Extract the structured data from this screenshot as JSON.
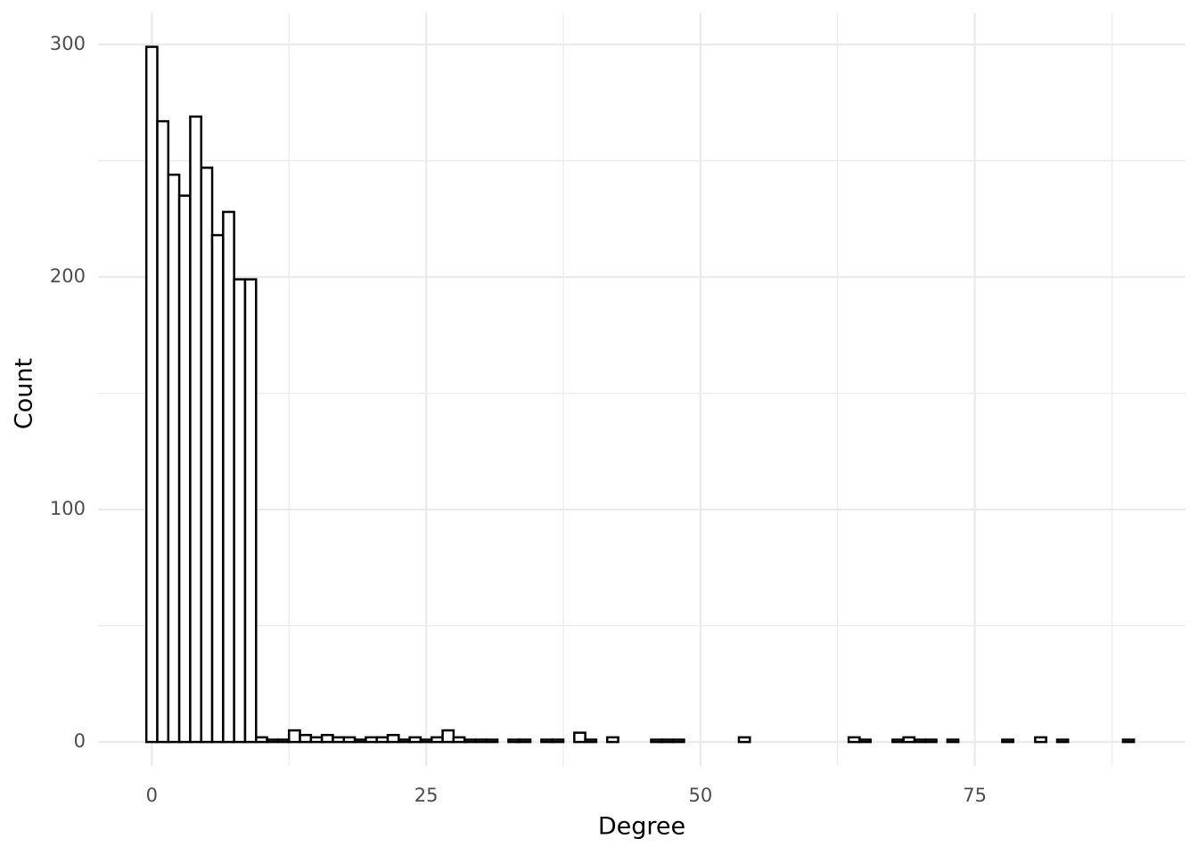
{
  "chart_data": {
    "type": "histogram",
    "x_label": "Degree",
    "y_label": "Count",
    "bins": [
      -0.5,
      0.5,
      1.5,
      2.5,
      3.5,
      4.5,
      5.5,
      6.5,
      7.5,
      8.5,
      9.5,
      10.5,
      11.5,
      12.5,
      13.5,
      14.5,
      15.5,
      16.5,
      17.5,
      18.5,
      19.5,
      20.5,
      21.5,
      22.5,
      23.5,
      24.5,
      25.5,
      26.5,
      27.5,
      28.5,
      29.5,
      30.5,
      31.5,
      32.5,
      33.5,
      34.5,
      35.5,
      36.5,
      37.5,
      38.5,
      39.5,
      40.5,
      41.5,
      42.5,
      43.5,
      44.5,
      45.5,
      46.5,
      47.5,
      48.5,
      49.5,
      50.5,
      51.5,
      52.5,
      53.5,
      54.5,
      55.5,
      56.5,
      57.5,
      58.5,
      59.5,
      60.5,
      61.5,
      62.5,
      63.5,
      64.5,
      65.5,
      66.5,
      67.5,
      68.5,
      69.5,
      70.5,
      71.5,
      72.5,
      73.5,
      74.5,
      75.5,
      76.5,
      77.5,
      78.5,
      79.5,
      80.5,
      81.5,
      82.5,
      83.5,
      84.5,
      85.5,
      86.5,
      87.5,
      88.5,
      89.5
    ],
    "counts": [
      299,
      267,
      244,
      235,
      269,
      247,
      218,
      228,
      199,
      199,
      2,
      1,
      1,
      5,
      3,
      2,
      3,
      2,
      2,
      1,
      2,
      2,
      3,
      1,
      2,
      1,
      2,
      5,
      2,
      1,
      1,
      1,
      0,
      1,
      1,
      0,
      1,
      1,
      0,
      4,
      1,
      0,
      2,
      0,
      0,
      0,
      1,
      1,
      1,
      0,
      0,
      0,
      0,
      0,
      2,
      0,
      0,
      0,
      0,
      0,
      0,
      0,
      0,
      0,
      2,
      1,
      0,
      0,
      1,
      2,
      1,
      1,
      0,
      1,
      0,
      0,
      0,
      0,
      1,
      0,
      0,
      2,
      0,
      1,
      0,
      0,
      0,
      0,
      0,
      1
    ],
    "fill": "#ffffff",
    "edge_color": "#000000",
    "xlim": [
      -4.9,
      94.2
    ],
    "ylim": [
      -10.3,
      313.4
    ],
    "xticks": [
      0,
      25,
      50,
      75
    ],
    "yticks": [
      0,
      100,
      200,
      300
    ],
    "x_minor_ticks": [
      12.5,
      37.5,
      62.5,
      87.5
    ],
    "y_minor_ticks": [
      50,
      150,
      250
    ],
    "grid": true
  }
}
